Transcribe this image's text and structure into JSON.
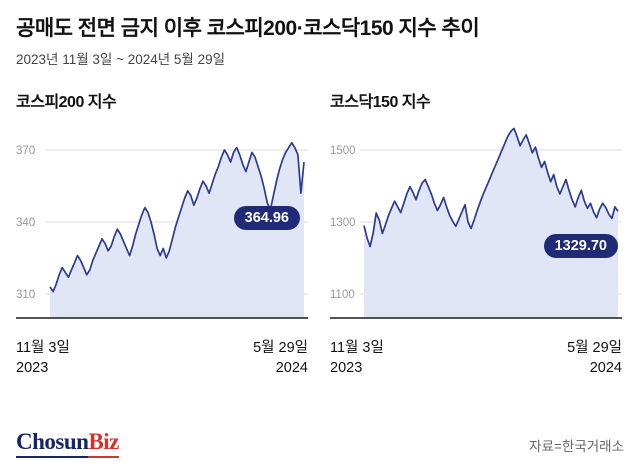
{
  "header": {
    "title": "공매도 전면 금지 이후 코스피200·코스닥150 지수 추이",
    "subtitle": "2023년 11월 3일 ~ 2024년 5월 29일"
  },
  "footer": {
    "logo_chosun": "Chosun",
    "logo_biz": "Biz",
    "source": "자료=한국거래소"
  },
  "colors": {
    "line": "#2b3a92",
    "fill": "#e1e6f7",
    "grid": "#d9d9d9",
    "axis": "#1a1a1a",
    "tick_text": "#9a9a9a",
    "badge_bg": "#1f2b77",
    "logo_navy": "#15246b",
    "logo_red": "#d6332c"
  },
  "chart_data": [
    {
      "type": "area",
      "title": "코스피200 지수",
      "last_value_label": "364.96",
      "last_value": 364.96,
      "y_ticks": [
        310,
        340,
        370
      ],
      "ylim": [
        305,
        378
      ],
      "x_range_label": "2023년 11월 3일 ~ 2024년 5월 29일",
      "x_tick_labels": [
        {
          "label": "11월 3일",
          "year": "2023"
        },
        {
          "label": "5월 29일",
          "year": "2024"
        }
      ],
      "legend": "none",
      "grid": "horizontal",
      "values": [
        313,
        311,
        314,
        318,
        321,
        319,
        317,
        320,
        323,
        326,
        324,
        321,
        318,
        320,
        324,
        327,
        330,
        333,
        331,
        328,
        330,
        334,
        337,
        335,
        332,
        329,
        326,
        330,
        335,
        339,
        343,
        346,
        344,
        340,
        335,
        329,
        326,
        329,
        325,
        328,
        333,
        338,
        342,
        346,
        350,
        353,
        351,
        347,
        350,
        354,
        357,
        355,
        352,
        356,
        360,
        363,
        367,
        370,
        368,
        365,
        369,
        371,
        368,
        364,
        361,
        365,
        369,
        367,
        363,
        359,
        354,
        348,
        345,
        351,
        357,
        362,
        366,
        369,
        371,
        373,
        371,
        368,
        352,
        364.96
      ]
    },
    {
      "type": "area",
      "title": "코스닥150 지수",
      "last_value_label": "1329.70",
      "last_value": 1329.7,
      "y_ticks": [
        1100,
        1300,
        1500
      ],
      "ylim": [
        1080,
        1580
      ],
      "x_range_label": "2023년 11월 3일 ~ 2024년 5월 29일",
      "x_tick_labels": [
        {
          "label": "11월 3일",
          "year": "2023"
        },
        {
          "label": "5월 29일",
          "year": "2024"
        }
      ],
      "legend": "none",
      "grid": "horizontal",
      "values": [
        1290,
        1255,
        1232,
        1270,
        1325,
        1305,
        1268,
        1292,
        1318,
        1338,
        1358,
        1342,
        1326,
        1352,
        1378,
        1398,
        1382,
        1362,
        1388,
        1408,
        1418,
        1398,
        1378,
        1352,
        1332,
        1348,
        1368,
        1342,
        1318,
        1302,
        1288,
        1308,
        1328,
        1348,
        1300,
        1282,
        1306,
        1332,
        1356,
        1378,
        1398,
        1418,
        1438,
        1458,
        1478,
        1498,
        1518,
        1538,
        1552,
        1560,
        1538,
        1512,
        1528,
        1542,
        1518,
        1492,
        1508,
        1478,
        1452,
        1468,
        1438,
        1412,
        1432,
        1398,
        1378,
        1398,
        1418,
        1388,
        1362,
        1342,
        1368,
        1388,
        1358,
        1338,
        1352,
        1328,
        1312,
        1336,
        1352,
        1340,
        1322,
        1310,
        1342,
        1329.7
      ]
    }
  ]
}
